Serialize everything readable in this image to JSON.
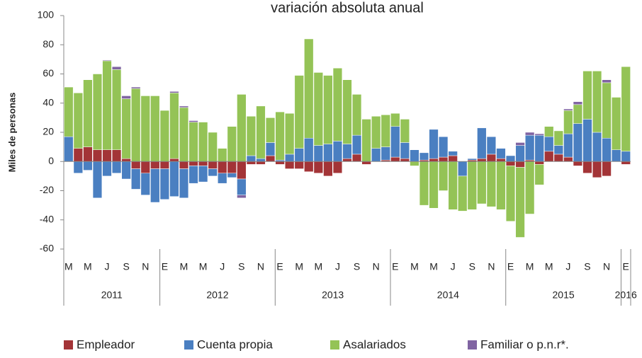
{
  "chart_data": {
    "type": "bar",
    "stacked": true,
    "title": "variación absoluta anual",
    "y_label": "Miles de personas",
    "categories": [
      "M",
      null,
      "M",
      null,
      "J",
      null,
      "S",
      null,
      "N",
      null,
      "E",
      null,
      "M",
      null,
      "M",
      null,
      "J",
      null,
      "S",
      null,
      "N",
      null,
      "E",
      null,
      "M",
      null,
      "M",
      null,
      "J",
      null,
      "S",
      null,
      "N",
      null,
      "E",
      null,
      "M",
      null,
      "M",
      null,
      "J",
      null,
      "S",
      null,
      "N",
      null,
      "E",
      null,
      "M",
      null,
      "M",
      null,
      "J",
      null,
      "S",
      null,
      "N",
      null,
      "E"
    ],
    "year_labels": [
      "2011",
      "2012",
      "2013",
      "2014",
      "2015",
      "2016"
    ],
    "ylim": [
      -60,
      100
    ],
    "yticks": [
      -60,
      -40,
      -20,
      0,
      20,
      40,
      60,
      80,
      100
    ],
    "grid": false,
    "legend": "bottom",
    "series": [
      {
        "name": "Empleador",
        "color": "#a33437",
        "values": [
          0,
          9,
          10,
          8,
          8,
          8,
          2,
          -5,
          -8,
          -5,
          -5,
          2,
          -5,
          -3,
          -3,
          -5,
          -8,
          -8,
          -12,
          -2,
          -2,
          4,
          -2,
          -5,
          -5,
          -7,
          -8,
          -10,
          -8,
          2,
          5,
          -2,
          0,
          1,
          3,
          2,
          0,
          1,
          2,
          3,
          4,
          0,
          1,
          2,
          5,
          2,
          -3,
          -4,
          1,
          -2,
          7,
          5,
          3,
          -3,
          -8,
          -11,
          -10,
          0,
          -2
        ]
      },
      {
        "name": "Cuenta propia",
        "color": "#4a7fc1",
        "values": [
          17,
          -8,
          -6,
          -25,
          -10,
          -8,
          -12,
          -14,
          -15,
          -23,
          -21,
          -24,
          -20,
          -12,
          -11,
          -5,
          -7,
          -3,
          -11,
          4,
          2,
          9,
          1,
          5,
          9,
          16,
          11,
          12,
          14,
          10,
          13,
          0,
          9,
          9,
          21,
          11,
          8,
          5,
          20,
          14,
          3,
          -10,
          1,
          21,
          12,
          7,
          4,
          11,
          17,
          18,
          10,
          6,
          16,
          26,
          29,
          20,
          16,
          8,
          7
        ]
      },
      {
        "name": "Asalariados",
        "color": "#94c356",
        "values": [
          34,
          38,
          46,
          52,
          61,
          55,
          41,
          50,
          45,
          45,
          35,
          45,
          37,
          27,
          27,
          20,
          9,
          24,
          46,
          27,
          36,
          17,
          33,
          28,
          50,
          68,
          50,
          47,
          50,
          44,
          28,
          29,
          22,
          22,
          9,
          16,
          -3,
          -30,
          -32,
          -20,
          -33,
          -24,
          -33,
          -29,
          -31,
          -33,
          -38,
          -48,
          -36,
          -14,
          7,
          10,
          16,
          13,
          33,
          42,
          38,
          36,
          58
        ]
      },
      {
        "name": "Familiar o p.n.r*.",
        "color": "#8064a2",
        "values": [
          0,
          0,
          0,
          0,
          0.5,
          2,
          2,
          1,
          0,
          0,
          0,
          1,
          1,
          1,
          0,
          0,
          0,
          0,
          -2,
          0,
          0,
          0,
          0,
          0,
          0,
          0,
          0,
          0,
          0,
          0,
          0,
          0,
          0,
          0,
          0,
          0,
          0,
          0,
          0,
          0,
          0,
          0,
          0,
          0,
          0,
          0,
          0,
          2,
          2,
          1,
          0,
          0,
          1,
          2,
          0,
          0,
          2,
          0,
          0
        ]
      }
    ]
  }
}
